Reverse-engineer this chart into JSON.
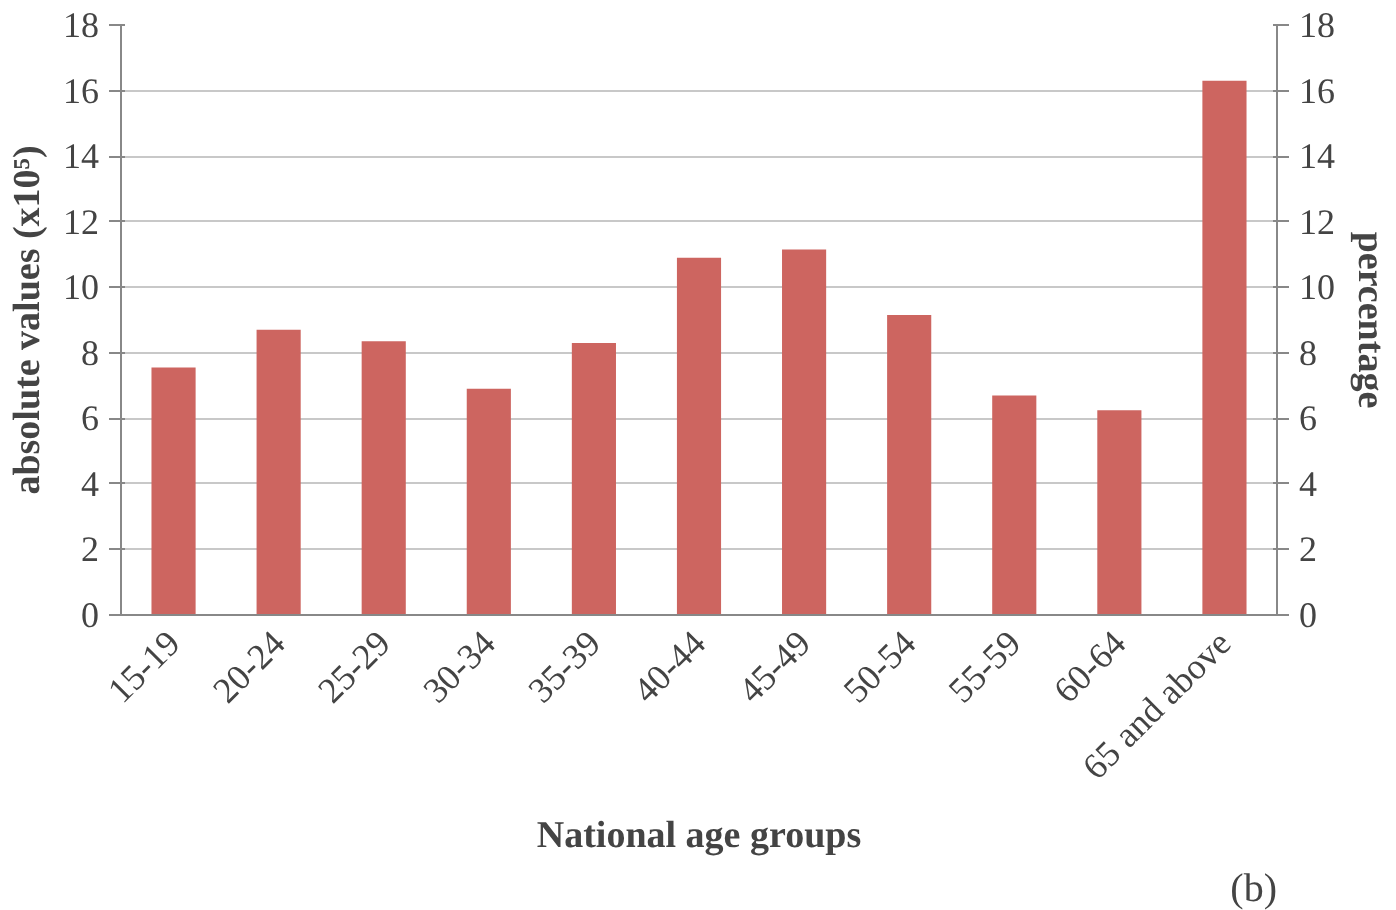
{
  "chart_data": {
    "type": "bar",
    "xlabel": "National age groups",
    "ylabel": "absolute values (x10⁵)",
    "y2label": "percentage",
    "categories": [
      "15-19",
      "20-24",
      "25-29",
      "30-34",
      "35-39",
      "40-44",
      "45-49",
      "50-54",
      "55-59",
      "60-64",
      "65 and above"
    ],
    "series": [
      {
        "color": "#cd6560",
        "values": [
          7.55,
          8.7,
          8.35,
          6.9,
          8.3,
          10.9,
          11.15,
          9.15,
          6.7,
          6.25,
          16.3
        ]
      }
    ],
    "ylim": [
      0,
      18
    ],
    "yticks": [
      0,
      2,
      4,
      6,
      8,
      10,
      12,
      14,
      16,
      18
    ],
    "y2lim": [
      0,
      18
    ],
    "y2ticks": [
      0,
      2,
      4,
      6,
      8,
      10,
      12,
      14,
      16,
      18
    ],
    "grid": "y",
    "annotations": [
      "(b)"
    ]
  }
}
